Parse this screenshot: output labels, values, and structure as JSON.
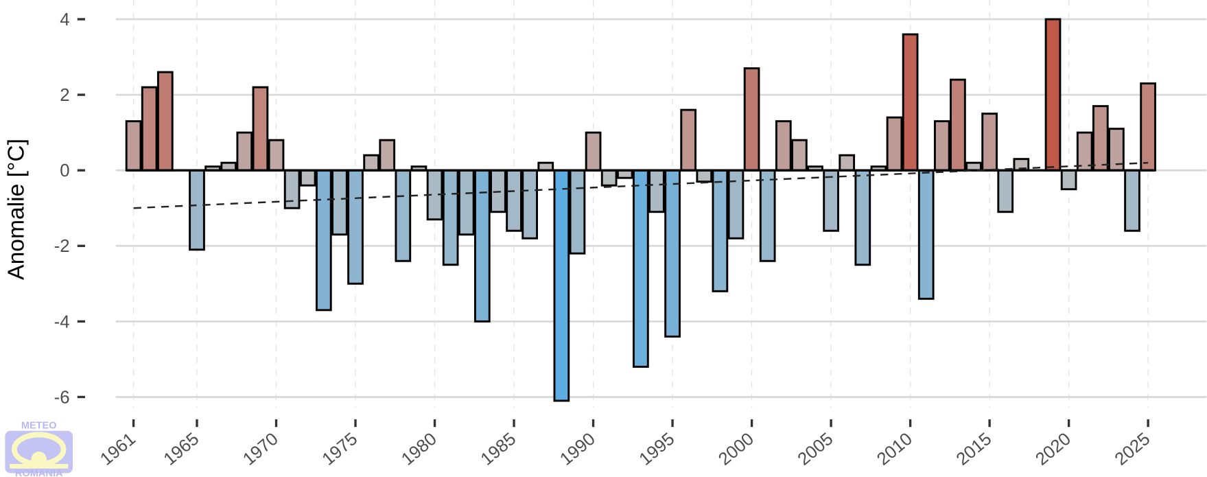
{
  "chart_data": {
    "type": "bar",
    "title": "",
    "xlabel": "",
    "ylabel": "Anomalie [°C]",
    "ylim": [
      -6.2,
      4.2
    ],
    "yticks": [
      4,
      2,
      0,
      -2,
      -4,
      -6
    ],
    "ytick_labels": [
      "4",
      "2",
      "0",
      "-2",
      "-4",
      "-6"
    ],
    "xticks": [
      1961,
      1965,
      1970,
      1975,
      1980,
      1985,
      1990,
      1995,
      2000,
      2005,
      2010,
      2015,
      2020,
      2025
    ],
    "xtick_labels": [
      "1961",
      "1965",
      "1970",
      "1975",
      "1980",
      "1985",
      "1990",
      "1995",
      "2000",
      "2005",
      "2010",
      "2015",
      "2020",
      "2025"
    ],
    "grid": true,
    "x": [
      1961,
      1962,
      1963,
      1964,
      1965,
      1966,
      1967,
      1968,
      1969,
      1970,
      1971,
      1972,
      1973,
      1974,
      1975,
      1976,
      1977,
      1978,
      1979,
      1980,
      1981,
      1982,
      1983,
      1984,
      1985,
      1986,
      1987,
      1988,
      1989,
      1990,
      1991,
      1992,
      1993,
      1994,
      1995,
      1996,
      1997,
      1998,
      1999,
      2000,
      2001,
      2002,
      2003,
      2004,
      2005,
      2006,
      2007,
      2008,
      2009,
      2010,
      2011,
      2012,
      2013,
      2014,
      2015,
      2016,
      2017,
      2018,
      2019,
      2020,
      2021,
      2022,
      2023,
      2024,
      2025
    ],
    "values": [
      1.3,
      2.2,
      2.6,
      0.0,
      -2.1,
      0.1,
      0.2,
      1.0,
      2.2,
      0.8,
      -1.0,
      -0.4,
      -3.7,
      -1.7,
      -3.0,
      0.4,
      0.8,
      -2.4,
      0.1,
      -1.3,
      -2.5,
      -1.7,
      -4.0,
      -1.1,
      -1.6,
      -1.8,
      0.2,
      -6.1,
      -2.2,
      1.0,
      -0.4,
      -0.2,
      -5.2,
      -1.1,
      -4.4,
      1.6,
      -0.3,
      -3.2,
      -1.8,
      2.7,
      -2.4,
      1.3,
      0.8,
      0.1,
      -1.6,
      0.4,
      -2.5,
      0.1,
      1.4,
      3.6,
      -3.4,
      1.3,
      2.4,
      0.2,
      1.5,
      -1.1,
      0.3,
      0.0,
      4.0,
      -0.5,
      1.0,
      1.7,
      1.1,
      -1.6,
      2.3
    ],
    "trend": {
      "style": "dashed",
      "start": [
        1961,
        -1.0
      ],
      "end": [
        2025,
        0.2
      ]
    },
    "colors": {
      "neutral": "#bdbdbd",
      "cold": "#5dade2",
      "warm": "#c0594a",
      "grid": "#d9d9d9",
      "outline": "#000000"
    }
  },
  "logo": {
    "top": "METEO",
    "bottom": "ROMANIA"
  }
}
